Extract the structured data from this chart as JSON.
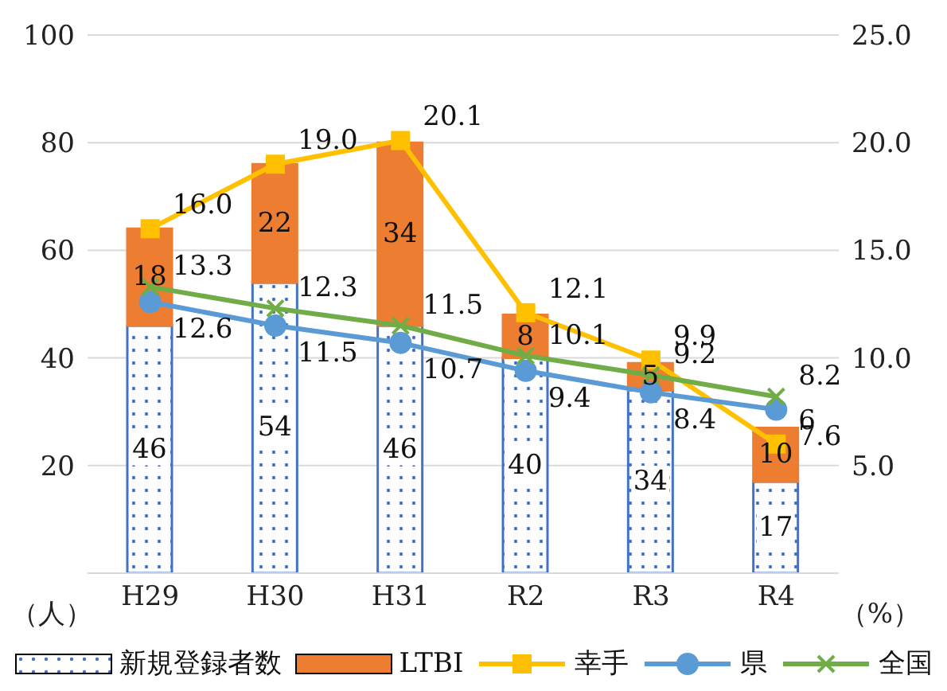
{
  "chart_data": {
    "type": "bar",
    "stacked": true,
    "categories": [
      "H29",
      "H30",
      "H31",
      "R2",
      "R3",
      "R4"
    ],
    "ylabel": "（人）",
    "y2label": "（%）",
    "ylim": [
      0,
      100
    ],
    "yticks": [
      {
        "value": 0,
        "label": null
      },
      20,
      40,
      60,
      80,
      100
    ],
    "y2lim": [
      0,
      25
    ],
    "y2ticks": [
      {
        "value": 0,
        "label": null
      },
      {
        "value": 5,
        "label": "5.0"
      },
      {
        "value": 10,
        "label": "10.0"
      },
      {
        "value": 15,
        "label": "15.0"
      },
      {
        "value": 20,
        "label": "20.0"
      },
      {
        "value": 25,
        "label": "25.0"
      }
    ],
    "grid": "y",
    "legend": "bottom",
    "data_labels": true,
    "series": [
      {
        "name": "新規登録者数",
        "color": "#4472c4",
        "values": [
          46,
          54,
          46,
          40,
          34,
          17
        ]
      },
      {
        "name": "LTBI",
        "color": "#ed7d31",
        "values": [
          18,
          22,
          34,
          8,
          5,
          10
        ]
      },
      {
        "name": "幸手",
        "type": "line",
        "axis": "y2",
        "marker": "square",
        "color": "#ffc000",
        "values": [
          16.0,
          19.0,
          20.1,
          12.1,
          9.9,
          6
        ],
        "value_labels": [
          "16.0",
          "19.0",
          "20.1",
          "12.1",
          "9.9",
          "6"
        ]
      },
      {
        "name": "県",
        "type": "line",
        "axis": "y2",
        "marker": "circle",
        "color": "#5b9bd5",
        "values": [
          12.6,
          11.5,
          10.7,
          9.4,
          8.4,
          7.6
        ],
        "value_labels": [
          "12.6",
          "11.5",
          "10.7",
          "9.4",
          "8.4",
          "7.6"
        ]
      },
      {
        "name": "全国",
        "type": "line",
        "axis": "y2",
        "marker": "cross",
        "color": "#70ad47",
        "values": [
          13.3,
          12.3,
          11.5,
          10.1,
          9.2,
          8.2
        ],
        "value_labels": [
          "13.3",
          "12.3",
          "11.5",
          "10.1",
          "9.2",
          "8.2"
        ]
      }
    ]
  }
}
